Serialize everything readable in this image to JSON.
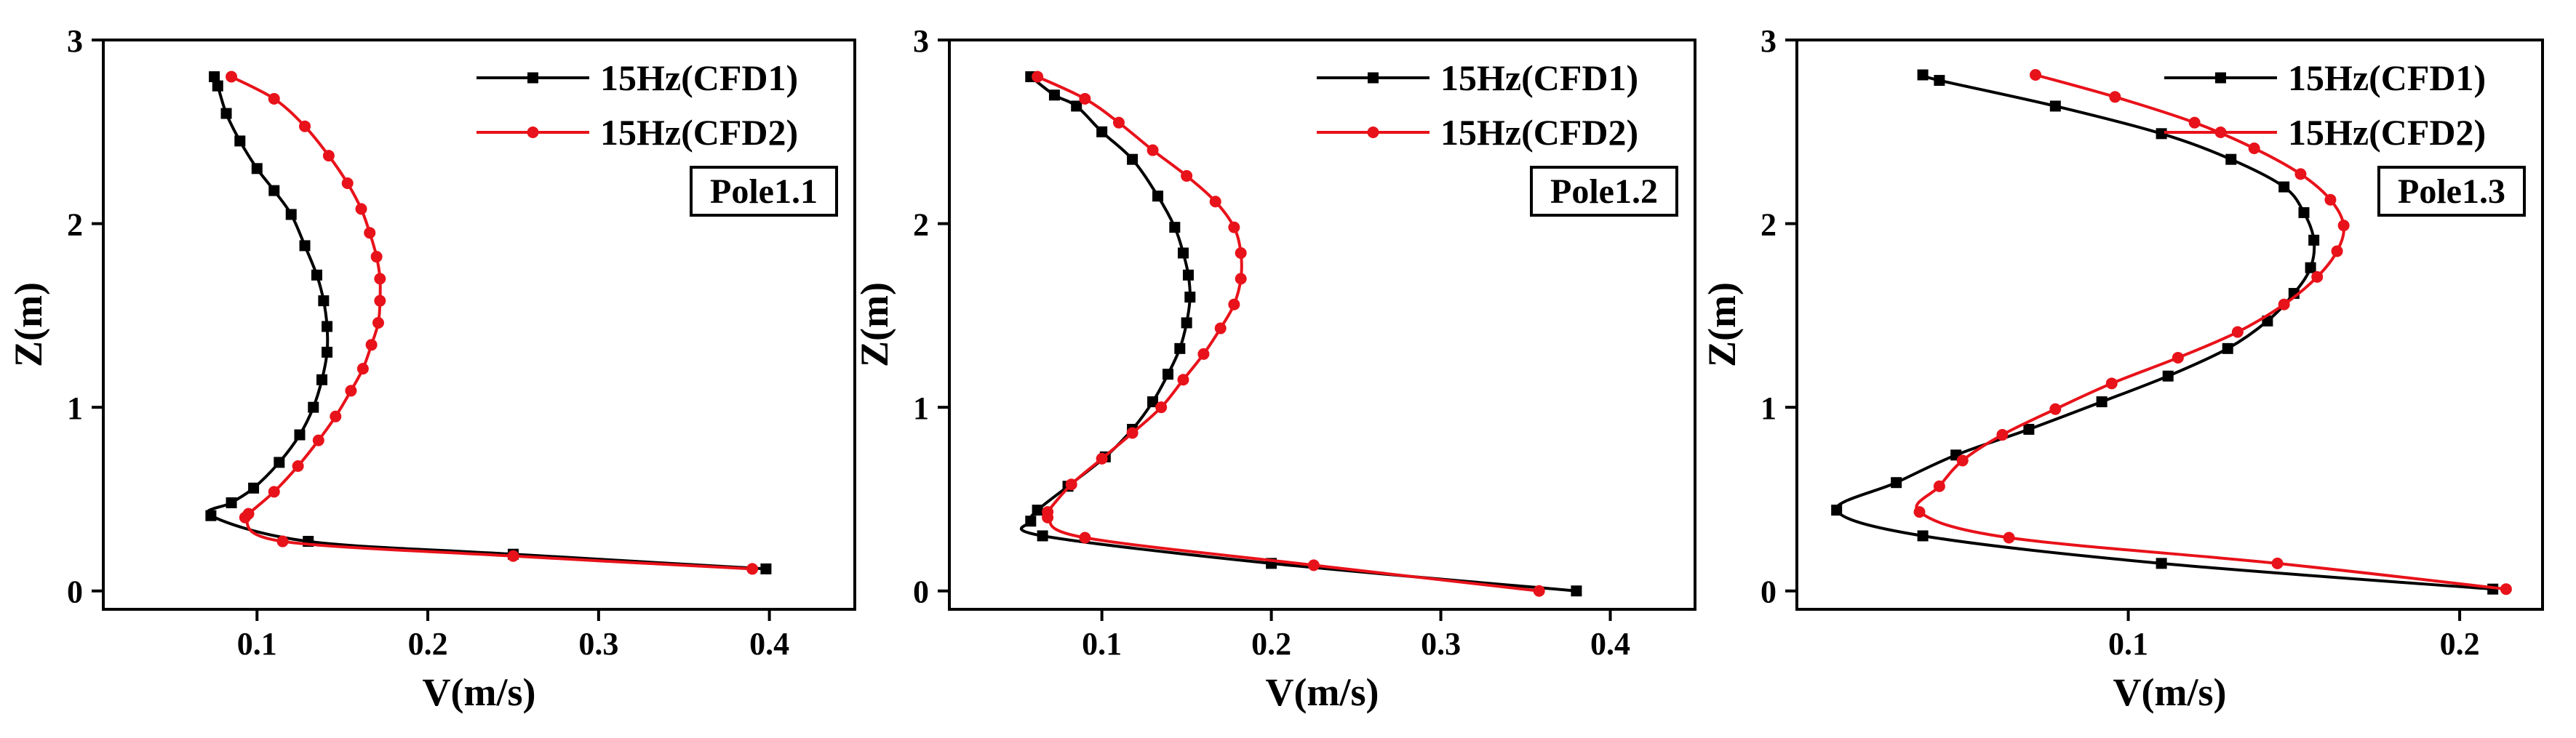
{
  "figure": {
    "chart_data": [
      {
        "type": "line",
        "annotation": "Pole1.1",
        "xlabel": "V(m/s)",
        "ylabel": "Z(m)",
        "xlim": [
          0.01,
          0.45
        ],
        "ylim": [
          -0.1,
          3.0
        ],
        "xticks": [
          0.1,
          0.2,
          0.3,
          0.4
        ],
        "xtick_labels": [
          "0.1",
          "0.2",
          "0.3",
          "0.4"
        ],
        "yticks": [
          0,
          1,
          2,
          3
        ],
        "ytick_labels": [
          "0",
          "1",
          "2",
          "3"
        ],
        "legend_position": "top-right",
        "series": [
          {
            "name": "15Hz(CFD1)",
            "color": "#000000",
            "marker": "square",
            "points": [
              [
                0.075,
                2.8
              ],
              [
                0.077,
                2.75
              ],
              [
                0.082,
                2.6
              ],
              [
                0.09,
                2.45
              ],
              [
                0.1,
                2.3
              ],
              [
                0.11,
                2.18
              ],
              [
                0.12,
                2.05
              ],
              [
                0.128,
                1.88
              ],
              [
                0.135,
                1.72
              ],
              [
                0.139,
                1.58
              ],
              [
                0.141,
                1.44
              ],
              [
                0.141,
                1.3
              ],
              [
                0.138,
                1.15
              ],
              [
                0.133,
                1.0
              ],
              [
                0.125,
                0.85
              ],
              [
                0.113,
                0.7
              ],
              [
                0.098,
                0.56
              ],
              [
                0.085,
                0.48
              ],
              [
                0.073,
                0.41
              ],
              [
                0.13,
                0.27
              ],
              [
                0.25,
                0.2
              ],
              [
                0.398,
                0.12
              ]
            ]
          },
          {
            "name": "15Hz(CFD2)",
            "color": "#e8121a",
            "marker": "circle",
            "points": [
              [
                0.085,
                2.8
              ],
              [
                0.11,
                2.68
              ],
              [
                0.128,
                2.53
              ],
              [
                0.142,
                2.37
              ],
              [
                0.153,
                2.22
              ],
              [
                0.161,
                2.08
              ],
              [
                0.166,
                1.95
              ],
              [
                0.17,
                1.82
              ],
              [
                0.172,
                1.7
              ],
              [
                0.172,
                1.58
              ],
              [
                0.171,
                1.46
              ],
              [
                0.167,
                1.34
              ],
              [
                0.162,
                1.21
              ],
              [
                0.155,
                1.09
              ],
              [
                0.146,
                0.95
              ],
              [
                0.136,
                0.82
              ],
              [
                0.124,
                0.68
              ],
              [
                0.11,
                0.54
              ],
              [
                0.095,
                0.42
              ],
              [
                0.093,
                0.4
              ],
              [
                0.115,
                0.27
              ],
              [
                0.25,
                0.19
              ],
              [
                0.39,
                0.12
              ]
            ]
          }
        ]
      },
      {
        "type": "line",
        "annotation": "Pole1.2",
        "xlabel": "V(m/s)",
        "ylabel": "Z(m)",
        "xlim": [
          0.01,
          0.45
        ],
        "ylim": [
          -0.1,
          3.0
        ],
        "xticks": [
          0.1,
          0.2,
          0.3,
          0.4
        ],
        "xtick_labels": [
          "0.1",
          "0.2",
          "0.3",
          "0.4"
        ],
        "yticks": [
          0,
          1,
          2,
          3
        ],
        "ytick_labels": [
          "0",
          "1",
          "2",
          "3"
        ],
        "legend_position": "top-right",
        "series": [
          {
            "name": "15Hz(CFD1)",
            "color": "#000000",
            "marker": "square",
            "points": [
              [
                0.058,
                2.8
              ],
              [
                0.072,
                2.7
              ],
              [
                0.085,
                2.64
              ],
              [
                0.1,
                2.5
              ],
              [
                0.118,
                2.35
              ],
              [
                0.133,
                2.15
              ],
              [
                0.143,
                1.98
              ],
              [
                0.148,
                1.84
              ],
              [
                0.151,
                1.72
              ],
              [
                0.152,
                1.6
              ],
              [
                0.15,
                1.46
              ],
              [
                0.146,
                1.32
              ],
              [
                0.139,
                1.18
              ],
              [
                0.13,
                1.03
              ],
              [
                0.118,
                0.88
              ],
              [
                0.102,
                0.73
              ],
              [
                0.08,
                0.57
              ],
              [
                0.062,
                0.44
              ],
              [
                0.058,
                0.38
              ],
              [
                0.065,
                0.3
              ],
              [
                0.2,
                0.15
              ],
              [
                0.38,
                0.0
              ]
            ]
          },
          {
            "name": "15Hz(CFD2)",
            "color": "#e8121a",
            "marker": "circle",
            "points": [
              [
                0.062,
                2.8
              ],
              [
                0.09,
                2.68
              ],
              [
                0.11,
                2.55
              ],
              [
                0.13,
                2.4
              ],
              [
                0.15,
                2.26
              ],
              [
                0.167,
                2.12
              ],
              [
                0.178,
                1.98
              ],
              [
                0.182,
                1.84
              ],
              [
                0.182,
                1.7
              ],
              [
                0.178,
                1.56
              ],
              [
                0.17,
                1.43
              ],
              [
                0.16,
                1.29
              ],
              [
                0.148,
                1.15
              ],
              [
                0.135,
                1.0
              ],
              [
                0.118,
                0.86
              ],
              [
                0.1,
                0.72
              ],
              [
                0.082,
                0.58
              ],
              [
                0.068,
                0.43
              ],
              [
                0.068,
                0.4
              ],
              [
                0.09,
                0.29
              ],
              [
                0.225,
                0.14
              ],
              [
                0.358,
                0.0
              ]
            ]
          }
        ]
      },
      {
        "type": "line",
        "annotation": "Pole1.3",
        "xlabel": "V(m/s)",
        "ylabel": "Z(m)",
        "xlim": [
          0.0,
          0.225
        ],
        "ylim": [
          -0.1,
          3.0
        ],
        "xticks": [
          0.1,
          0.2
        ],
        "xtick_labels": [
          "0.1",
          "0.2"
        ],
        "yticks": [
          0,
          1,
          2,
          3
        ],
        "ytick_labels": [
          "0",
          "1",
          "2",
          "3"
        ],
        "legend_position": "top-right",
        "series": [
          {
            "name": "15Hz(CFD1)",
            "color": "#000000",
            "marker": "square",
            "points": [
              [
                0.038,
                2.81
              ],
              [
                0.043,
                2.78
              ],
              [
                0.078,
                2.64
              ],
              [
                0.11,
                2.49
              ],
              [
                0.131,
                2.35
              ],
              [
                0.147,
                2.2
              ],
              [
                0.153,
                2.06
              ],
              [
                0.156,
                1.91
              ],
              [
                0.155,
                1.76
              ],
              [
                0.15,
                1.62
              ],
              [
                0.142,
                1.47
              ],
              [
                0.13,
                1.32
              ],
              [
                0.112,
                1.17
              ],
              [
                0.092,
                1.03
              ],
              [
                0.07,
                0.88
              ],
              [
                0.048,
                0.74
              ],
              [
                0.03,
                0.59
              ],
              [
                0.012,
                0.44
              ],
              [
                0.038,
                0.3
              ],
              [
                0.11,
                0.15
              ],
              [
                0.21,
                0.01
              ]
            ]
          },
          {
            "name": "15Hz(CFD2)",
            "color": "#e8121a",
            "marker": "circle",
            "points": [
              [
                0.072,
                2.81
              ],
              [
                0.096,
                2.69
              ],
              [
                0.12,
                2.55
              ],
              [
                0.138,
                2.41
              ],
              [
                0.152,
                2.27
              ],
              [
                0.161,
                2.13
              ],
              [
                0.165,
                1.99
              ],
              [
                0.163,
                1.85
              ],
              [
                0.157,
                1.71
              ],
              [
                0.147,
                1.56
              ],
              [
                0.133,
                1.41
              ],
              [
                0.115,
                1.27
              ],
              [
                0.095,
                1.13
              ],
              [
                0.078,
                0.99
              ],
              [
                0.062,
                0.85
              ],
              [
                0.05,
                0.71
              ],
              [
                0.043,
                0.57
              ],
              [
                0.037,
                0.43
              ],
              [
                0.064,
                0.29
              ],
              [
                0.145,
                0.15
              ],
              [
                0.214,
                0.01
              ]
            ]
          }
        ]
      }
    ]
  }
}
